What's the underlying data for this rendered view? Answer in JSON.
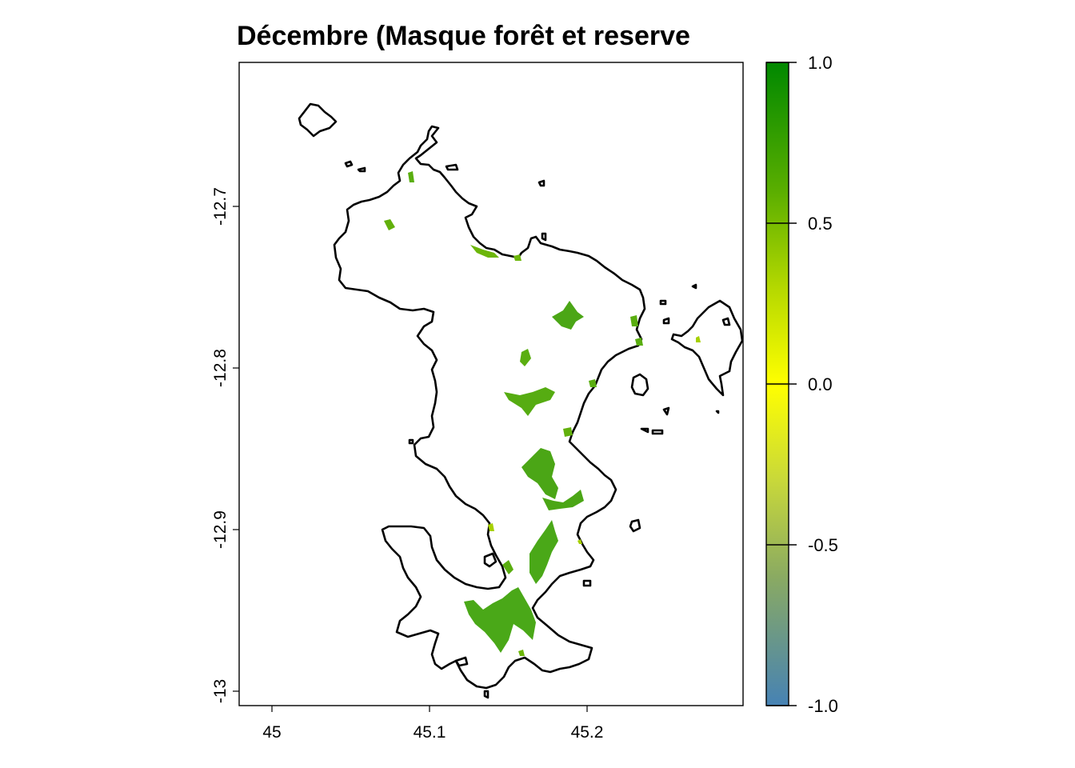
{
  "title": "Décembre (Masque forêt et reserve",
  "map": {
    "x_axis": {
      "ticks": [
        45,
        45.1,
        45.2
      ],
      "tick_labels": [
        "45",
        "45.1",
        "45.2"
      ],
      "range": [
        44.98,
        45.3
      ]
    },
    "y_axis": {
      "ticks": [
        -12.7,
        -12.8,
        -12.9,
        -13
      ],
      "tick_labels": [
        "-12.7",
        "-12.8",
        "-12.9",
        "-13"
      ],
      "range": [
        -13.01,
        -12.61
      ]
    }
  },
  "legend": {
    "type": "colorbar",
    "range": [
      -1.0,
      1.0
    ],
    "ticks": [
      1.0,
      0.5,
      0.0,
      -0.5,
      -1.0
    ],
    "tick_labels": [
      "1.0",
      "0.5",
      "0.0",
      "-0.5",
      "-1.0"
    ],
    "colors": [
      "#4682b4",
      "#8db060",
      "#c8dc2a",
      "#ffff00",
      "#a8d400",
      "#5aae00",
      "#008800"
    ]
  },
  "colors": {
    "forest_dark": "#3a9a0a",
    "forest_mid": "#4aa818",
    "forest_light": "#7fc400"
  }
}
